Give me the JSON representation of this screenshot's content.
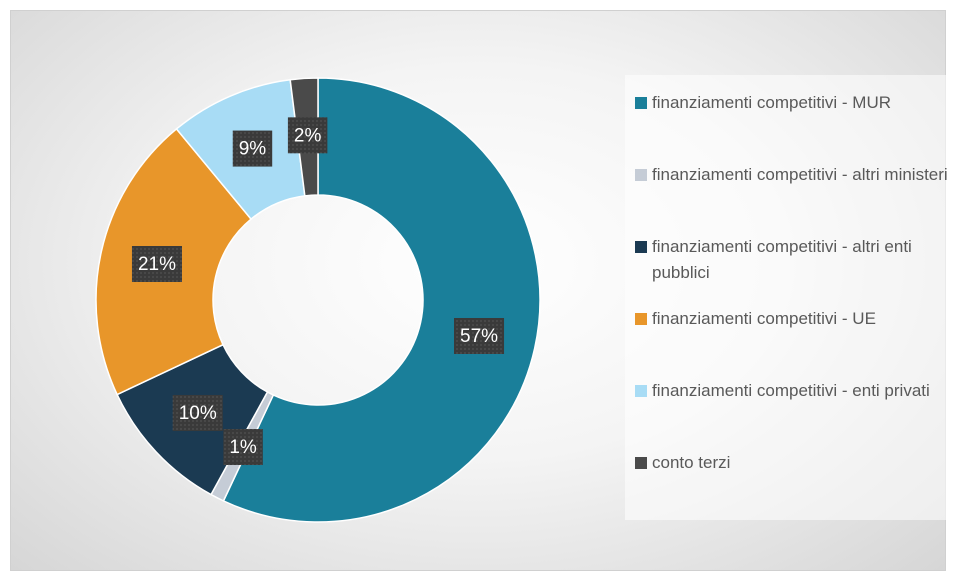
{
  "chart_data": {
    "type": "donut",
    "categories": [
      "finanziamenti competitivi - MUR",
      "finanziamenti competitivi - altri ministeri",
      "finanziamenti competitivi - altri enti pubblici",
      "finanziamenti competitivi - UE",
      "finanziamenti competitivi - enti privati",
      "conto terzi"
    ],
    "values": [
      57,
      1,
      10,
      21,
      9,
      2
    ],
    "value_labels": [
      "57%",
      "1%",
      "10%",
      "21%",
      "9%",
      "2%"
    ],
    "colors": [
      "#1a7f9a",
      "#c5ccd6",
      "#1b3a52",
      "#e8962a",
      "#a8dcf5",
      "#4a4a4a"
    ],
    "legend": "right"
  }
}
